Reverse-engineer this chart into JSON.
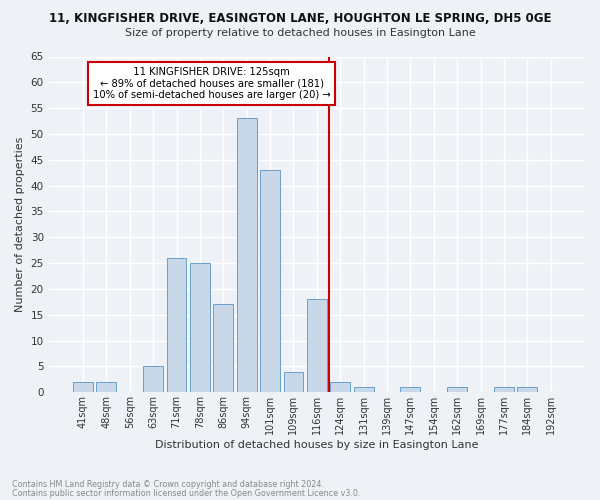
{
  "title": "11, KINGFISHER DRIVE, EASINGTON LANE, HOUGHTON LE SPRING, DH5 0GE",
  "subtitle": "Size of property relative to detached houses in Easington Lane",
  "xlabel": "Distribution of detached houses by size in Easington Lane",
  "ylabel": "Number of detached properties",
  "categories": [
    "41sqm",
    "48sqm",
    "56sqm",
    "63sqm",
    "71sqm",
    "78sqm",
    "86sqm",
    "94sqm",
    "101sqm",
    "109sqm",
    "116sqm",
    "124sqm",
    "131sqm",
    "139sqm",
    "147sqm",
    "154sqm",
    "162sqm",
    "169sqm",
    "177sqm",
    "184sqm",
    "192sqm"
  ],
  "values": [
    2,
    2,
    0,
    5,
    26,
    25,
    17,
    53,
    43,
    4,
    18,
    2,
    1,
    0,
    1,
    0,
    1,
    0,
    1,
    1,
    0
  ],
  "bar_color": "#c8d8e8",
  "bar_edge_color": "#6a9fc8",
  "vline_color": "#cc0000",
  "annotation_text": "  11 KINGFISHER DRIVE: 125sqm  \n← 89% of detached houses are smaller (181)\n10% of semi-detached houses are larger (20) →",
  "annotation_box_color": "#cc0000",
  "ylim": [
    0,
    65
  ],
  "yticks": [
    0,
    5,
    10,
    15,
    20,
    25,
    30,
    35,
    40,
    45,
    50,
    55,
    60,
    65
  ],
  "footer1": "Contains HM Land Registry data © Crown copyright and database right 2024.",
  "footer2": "Contains public sector information licensed under the Open Government Licence v3.0.",
  "bg_color": "#eef2f7",
  "grid_color": "#ffffff"
}
